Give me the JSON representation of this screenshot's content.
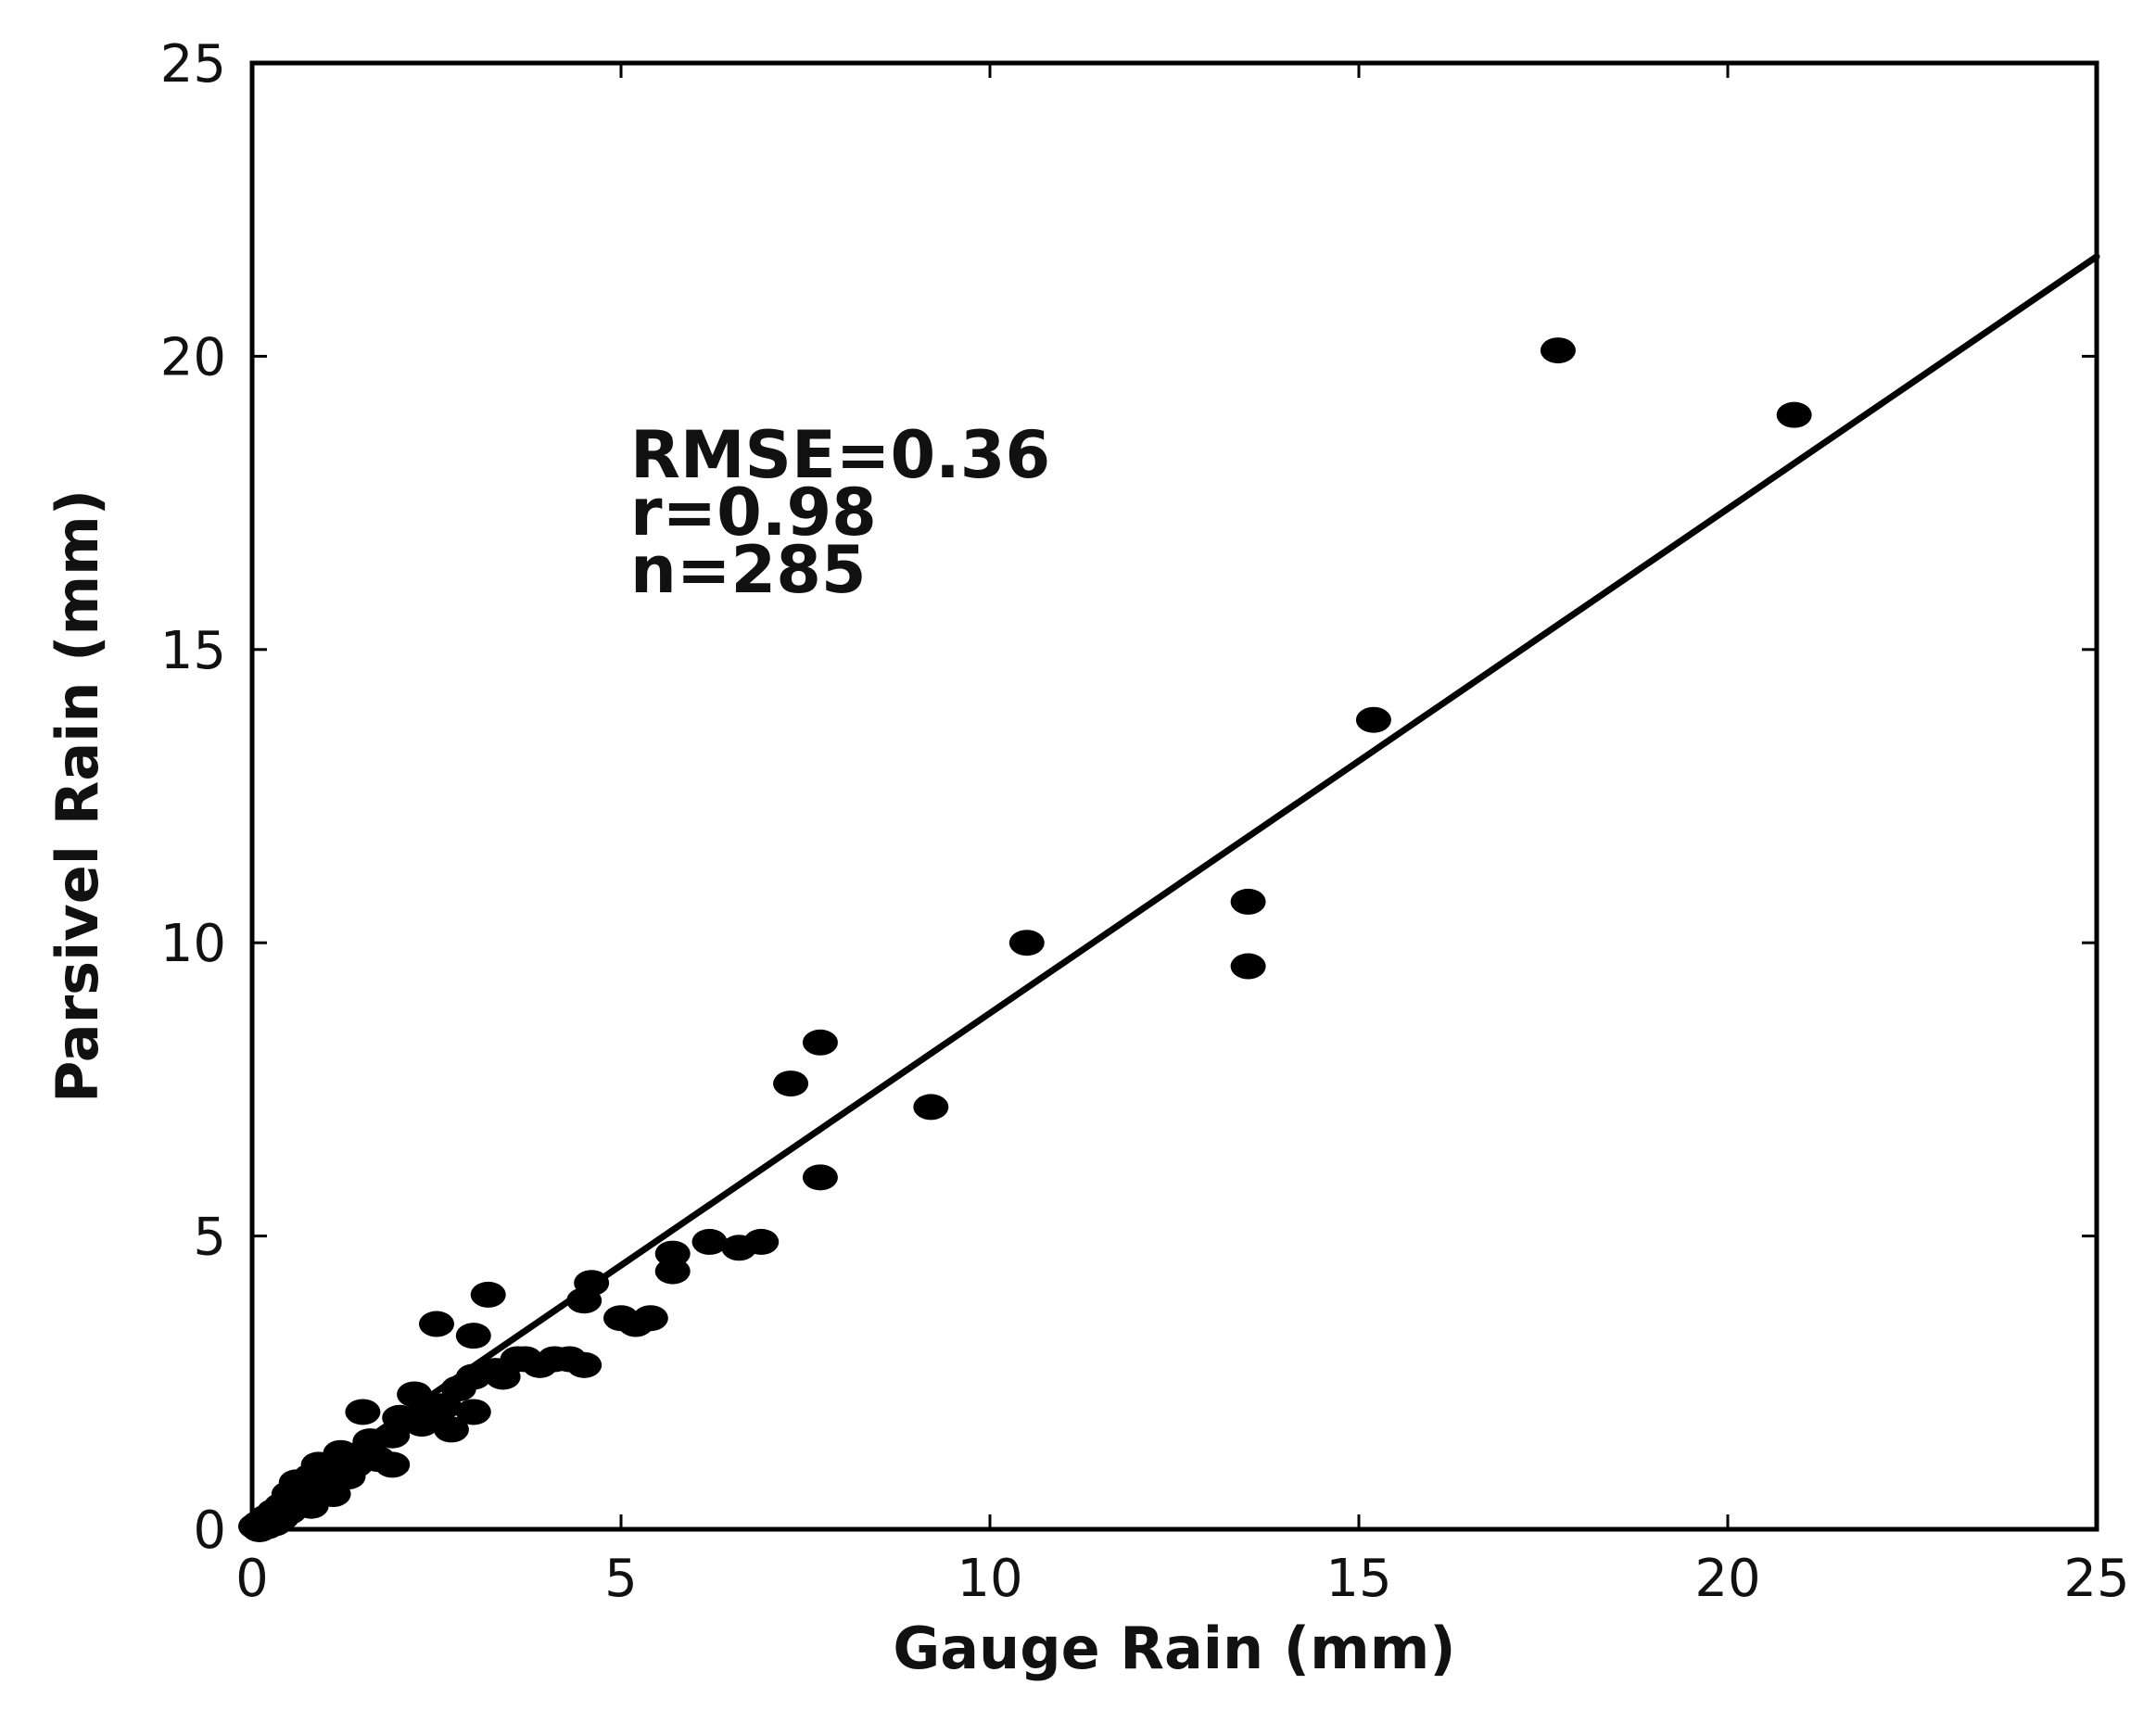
{
  "chart_data": {
    "type": "scatter",
    "title": "",
    "xlabel": "Gauge Rain (mm)",
    "ylabel": "Parsivel Rain (mm)",
    "xlim": [
      0,
      25
    ],
    "ylim": [
      0,
      25
    ],
    "xticks": [
      "0",
      "5",
      "10",
      "15",
      "20",
      "25"
    ],
    "yticks": [
      "0",
      "5",
      "10",
      "15",
      "20",
      "25"
    ],
    "grid": false,
    "legend": "none",
    "annotations": [
      "RMSE=0.36",
      "r=0.98",
      "n=285"
    ],
    "fit_line": {
      "x": [
        0,
        25
      ],
      "y": [
        0.2,
        21.7
      ]
    },
    "points": [
      [
        17.7,
        20.1
      ],
      [
        20.9,
        19.0
      ],
      [
        15.2,
        13.8
      ],
      [
        13.5,
        10.7
      ],
      [
        13.5,
        9.6
      ],
      [
        10.5,
        10.0
      ],
      [
        9.2,
        7.2
      ],
      [
        7.7,
        8.3
      ],
      [
        7.3,
        7.6
      ],
      [
        7.7,
        6.0
      ],
      [
        6.9,
        4.9
      ],
      [
        6.6,
        4.8
      ],
      [
        6.2,
        4.9
      ],
      [
        5.7,
        4.7
      ],
      [
        5.7,
        4.4
      ],
      [
        5.4,
        3.6
      ],
      [
        5.0,
        3.6
      ],
      [
        5.2,
        3.5
      ],
      [
        4.6,
        4.2
      ],
      [
        4.5,
        3.9
      ],
      [
        4.5,
        2.8
      ],
      [
        4.3,
        2.9
      ],
      [
        3.9,
        2.8
      ],
      [
        3.6,
        2.9
      ],
      [
        3.4,
        2.6
      ],
      [
        3.2,
        4.0
      ],
      [
        3.0,
        3.3
      ],
      [
        2.5,
        3.5
      ],
      [
        3.0,
        2.6
      ],
      [
        2.8,
        2.4
      ],
      [
        3.0,
        2.0
      ],
      [
        2.7,
        1.7
      ],
      [
        2.4,
        2.0
      ],
      [
        2.2,
        2.3
      ],
      [
        2.0,
        1.9
      ],
      [
        1.9,
        1.6
      ],
      [
        1.9,
        1.1
      ],
      [
        1.5,
        2.0
      ],
      [
        1.6,
        1.5
      ],
      [
        1.5,
        1.3
      ],
      [
        1.4,
        1.1
      ],
      [
        1.3,
        0.9
      ],
      [
        1.2,
        1.3
      ],
      [
        1.1,
        1.0
      ],
      [
        1.0,
        0.8
      ],
      [
        0.9,
        1.1
      ],
      [
        0.9,
        0.6
      ],
      [
        0.8,
        0.9
      ],
      [
        0.8,
        0.4
      ],
      [
        0.7,
        0.7
      ],
      [
        0.6,
        0.8
      ],
      [
        0.6,
        0.5
      ],
      [
        0.5,
        0.3
      ],
      [
        0.5,
        0.6
      ],
      [
        0.4,
        0.4
      ],
      [
        0.4,
        0.2
      ],
      [
        0.3,
        0.3
      ],
      [
        0.3,
        0.1
      ],
      [
        0.2,
        0.2
      ],
      [
        0.2,
        0.05
      ],
      [
        0.1,
        0.1
      ],
      [
        0.1,
        0.0
      ],
      [
        0.05,
        0.05
      ],
      [
        1.1,
        0.6
      ],
      [
        1.7,
        1.2
      ],
      [
        2.3,
        1.8
      ],
      [
        2.6,
        2.1
      ],
      [
        3.3,
        2.7
      ],
      [
        3.7,
        2.9
      ],
      [
        4.1,
        2.9
      ]
    ]
  }
}
